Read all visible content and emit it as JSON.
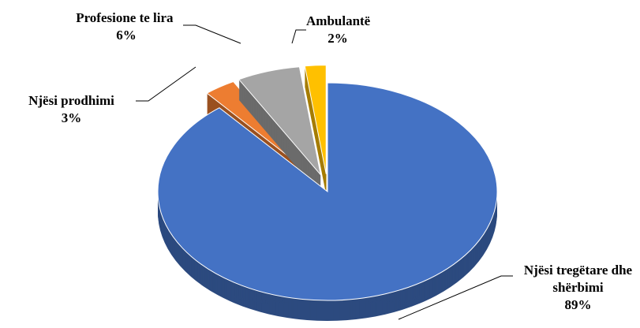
{
  "chart_data": {
    "type": "pie3d",
    "categories": [
      "Njësi tregëtare dhe shërbimi",
      "Njësi prodhimi",
      "Profesione te lira",
      "Ambulantë"
    ],
    "values": [
      89,
      3,
      6,
      2
    ],
    "value_labels": [
      "89%",
      "3%",
      "6%",
      "2%"
    ],
    "colors": [
      "#4472c4",
      "#ed7d31",
      "#a5a5a5",
      "#ffc000"
    ]
  }
}
